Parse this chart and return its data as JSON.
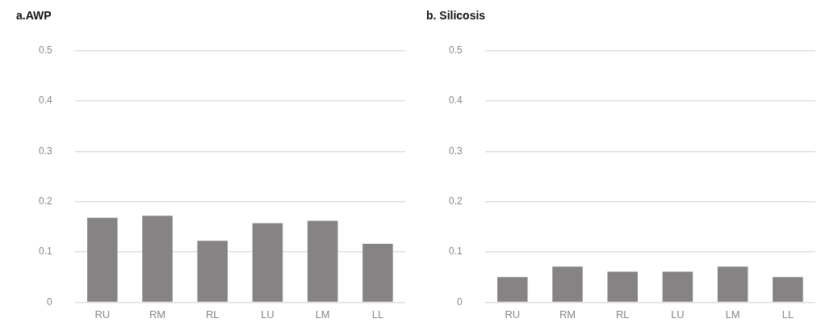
{
  "chart_data": [
    {
      "type": "bar",
      "title": "a.AWP",
      "categories": [
        "RU",
        "RM",
        "RL",
        "LU",
        "LM",
        "LL"
      ],
      "values": [
        0.168,
        0.172,
        0.122,
        0.157,
        0.162,
        0.116
      ],
      "color": "#868384",
      "ylim": [
        0,
        0.5
      ],
      "yticks": [
        0,
        0.1,
        0.2,
        0.3,
        0.4,
        0.5
      ],
      "grid": "y"
    },
    {
      "type": "bar",
      "title": "b. Silicosis",
      "categories": [
        "RU",
        "RM",
        "RL",
        "LU",
        "LM",
        "LL"
      ],
      "values": [
        0.05,
        0.071,
        0.061,
        0.061,
        0.071,
        0.05
      ],
      "color": "#868384",
      "ylim": [
        0,
        0.5
      ],
      "yticks": [
        0,
        0.1,
        0.2,
        0.3,
        0.4,
        0.5
      ],
      "grid": "y"
    }
  ]
}
